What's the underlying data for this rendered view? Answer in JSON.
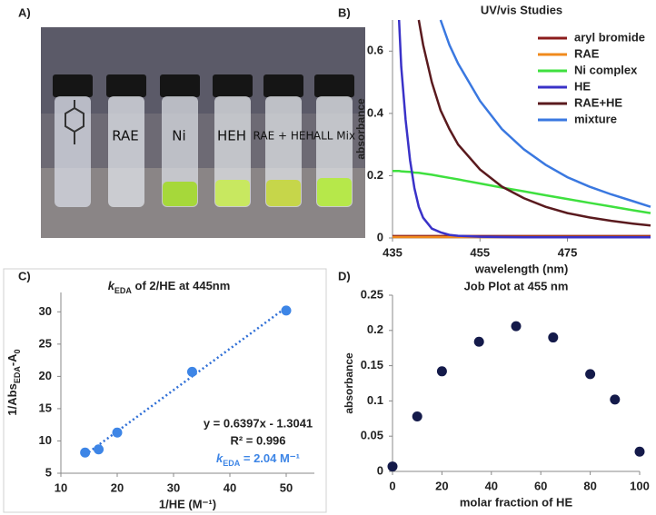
{
  "photo": {
    "panel": "A)",
    "vial_labels": [
      "RAE",
      "Ni",
      "HEH",
      "RAE + HEH",
      "ALL Mix"
    ]
  },
  "chart_data": [
    {
      "type": "line",
      "panel": "B)",
      "title": "UV/vis Studies",
      "xlabel": "wavelength (nm)",
      "ylabel": "absorbance",
      "x": [
        435,
        436.5,
        437,
        438,
        439,
        440,
        441,
        442,
        444,
        446,
        448,
        450,
        455,
        460,
        465,
        470,
        475,
        480,
        485,
        490,
        494
      ],
      "xlim": [
        435,
        494
      ],
      "xticks": [
        435,
        455,
        475
      ],
      "ylim": [
        0,
        0.7
      ],
      "yticks": [
        0,
        0.2,
        0.4,
        0.6
      ],
      "grid": false,
      "legend": "upper right",
      "series": [
        {
          "name": "aryl bromide",
          "color": "#8b1c1c",
          "values": [
            0.006,
            0.006,
            0.006,
            0.006,
            0.006,
            0.006,
            0.006,
            0.006,
            0.006,
            0.006,
            0.006,
            0.006,
            0.006,
            0.006,
            0.006,
            0.006,
            0.006,
            0.006,
            0.006,
            0.006,
            0.006
          ]
        },
        {
          "name": "RAE",
          "color": "#f08a1c",
          "values": [
            0.003,
            0.003,
            0.003,
            0.003,
            0.003,
            0.003,
            0.003,
            0.003,
            0.003,
            0.003,
            0.003,
            0.003,
            0.003,
            0.003,
            0.003,
            0.003,
            0.003,
            0.003,
            0.003,
            0.003,
            0.003
          ]
        },
        {
          "name": "Ni complex",
          "color": "#3fe03f",
          "values": [
            0.215,
            0.215,
            0.214,
            0.213,
            0.212,
            0.21,
            0.209,
            0.207,
            0.203,
            0.198,
            0.193,
            0.188,
            0.175,
            0.162,
            0.15,
            0.137,
            0.125,
            0.113,
            0.101,
            0.089,
            0.08
          ]
        },
        {
          "name": "HE",
          "color": "#3a32c8",
          "values": [
            null,
            0.7,
            0.55,
            0.38,
            0.25,
            0.16,
            0.1,
            0.065,
            0.03,
            0.018,
            0.01,
            0.007,
            0.004,
            0.003,
            0.002,
            0.002,
            0.002,
            0.002,
            0.002,
            0.002,
            0.002
          ]
        },
        {
          "name": "RAE+HE",
          "color": "#5a1a1e",
          "values": [
            null,
            null,
            null,
            null,
            null,
            null,
            0.7,
            0.62,
            0.5,
            0.41,
            0.35,
            0.3,
            0.22,
            0.165,
            0.128,
            0.1,
            0.08,
            0.066,
            0.055,
            0.046,
            0.04
          ]
        },
        {
          "name": "mixture",
          "color": "#3a78e0",
          "values": [
            null,
            null,
            null,
            null,
            null,
            null,
            null,
            null,
            null,
            0.7,
            0.62,
            0.56,
            0.44,
            0.35,
            0.285,
            0.235,
            0.195,
            0.165,
            0.14,
            0.118,
            0.1
          ]
        }
      ]
    },
    {
      "type": "scatter",
      "panel": "C)",
      "title": [
        "k",
        "EDA",
        " of 2/HE at 445nm"
      ],
      "xlabel": "1/HE (M⁻¹)",
      "ylabel": [
        "1/Abs",
        "EDA",
        "-A",
        "0"
      ],
      "x": [
        14.3,
        16.7,
        20,
        33.3,
        50
      ],
      "values": [
        8.2,
        8.7,
        11.3,
        20.7,
        30.2
      ],
      "color": "#3d85e6",
      "trendline": {
        "x": [
          14.3,
          50
        ],
        "values": [
          7.84,
          30.68
        ],
        "color": "#2f6fd6"
      },
      "annotations": [
        "y = 0.6397x - 1.3041",
        "R² = 0.996"
      ],
      "k_label": [
        "k",
        "EDA",
        " = 2.04 M⁻¹"
      ],
      "xlim": [
        10,
        55
      ],
      "xticks": [
        10,
        20,
        30,
        40,
        50
      ],
      "ylim": [
        5,
        33
      ],
      "yticks": [
        5,
        10,
        15,
        20,
        25,
        30
      ],
      "grid": false
    },
    {
      "type": "scatter",
      "panel": "D)",
      "title": "Job Plot at 455 nm",
      "xlabel": "molar fraction of HE",
      "ylabel": "absorbance",
      "x": [
        0,
        10,
        20,
        35,
        50,
        65,
        80,
        90,
        100
      ],
      "values": [
        0.007,
        0.078,
        0.142,
        0.184,
        0.206,
        0.19,
        0.138,
        0.102,
        0.028
      ],
      "color": "#141a4a",
      "xlim": [
        0,
        100
      ],
      "xticks": [
        0,
        20,
        40,
        60,
        80,
        100
      ],
      "ylim": [
        0,
        0.25
      ],
      "yticks": [
        0,
        0.05,
        0.1,
        0.15,
        0.2,
        0.25
      ],
      "grid": false
    }
  ]
}
